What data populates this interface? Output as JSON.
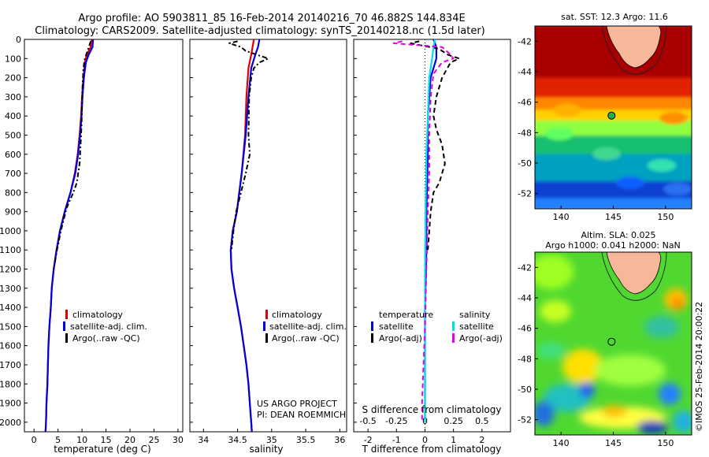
{
  "figure": {
    "title_line1": "Argo profile: AO 5903811_85 16-Feb-2014 20140216_70 46.882S 144.834E",
    "title_line2": "Climatology: CARS2009. Satellite-adjusted climatology: synTS_20140218.nc (1.5d later)",
    "project_line1": "US ARGO PROJECT",
    "project_line2": "PI: DEAN ROEMMICH",
    "watermark": "©IMOS 25-Feb-2014 20:00:22"
  },
  "colors": {
    "climatology": "#e00000",
    "satellite": "#0000e0",
    "argo": "#000000",
    "sal_satellite": "#00e0e0",
    "sal_argo": "#e000e0",
    "land": "#f6b899"
  },
  "chart_data": [
    {
      "type": "line",
      "name": "temperature-profile",
      "xlabel": "temperature (deg C)",
      "ylabel": "",
      "xlim": [
        -2,
        31
      ],
      "ylim": [
        2050,
        0
      ],
      "xticks": [
        "0",
        "5",
        "10",
        "15",
        "20",
        "25",
        "30"
      ],
      "yticks": [
        "0",
        "100",
        "200",
        "300",
        "400",
        "500",
        "600",
        "700",
        "800",
        "900",
        "1000",
        "1100",
        "1200",
        "1300",
        "1400",
        "1500",
        "1600",
        "1700",
        "1800",
        "1900",
        "2000"
      ],
      "legend": {
        "position": "lower-center",
        "entries": [
          "climatology",
          "satellite-adj. clim.",
          "Argo(..raw -QC)"
        ]
      },
      "series": [
        {
          "name": "climatology",
          "style": "solid",
          "points": [
            [
              12.0,
              0
            ],
            [
              11.8,
              40
            ],
            [
              11.0,
              80
            ],
            [
              10.6,
              120
            ],
            [
              10.3,
              200
            ],
            [
              10.0,
              300
            ],
            [
              9.8,
              400
            ],
            [
              9.5,
              500
            ],
            [
              9.1,
              600
            ],
            [
              8.5,
              700
            ],
            [
              7.6,
              800
            ],
            [
              6.4,
              900
            ],
            [
              5.4,
              1000
            ],
            [
              4.7,
              1100
            ],
            [
              4.1,
              1200
            ],
            [
              3.7,
              1300
            ],
            [
              3.5,
              1400
            ],
            [
              3.2,
              1500
            ],
            [
              3.0,
              1600
            ],
            [
              2.9,
              1700
            ],
            [
              2.8,
              1800
            ],
            [
              2.6,
              1900
            ],
            [
              2.5,
              2000
            ],
            [
              2.4,
              2050
            ]
          ]
        },
        {
          "name": "satellite-adj. clim.",
          "style": "solid",
          "points": [
            [
              12.3,
              0
            ],
            [
              12.2,
              40
            ],
            [
              11.4,
              80
            ],
            [
              10.8,
              120
            ],
            [
              10.4,
              200
            ],
            [
              10.1,
              300
            ],
            [
              9.9,
              400
            ],
            [
              9.6,
              500
            ],
            [
              9.2,
              600
            ],
            [
              8.6,
              700
            ],
            [
              7.6,
              800
            ],
            [
              6.4,
              900
            ],
            [
              5.4,
              1000
            ],
            [
              4.7,
              1100
            ],
            [
              4.1,
              1200
            ],
            [
              3.7,
              1300
            ],
            [
              3.5,
              1400
            ],
            [
              3.2,
              1500
            ],
            [
              3.0,
              1600
            ],
            [
              2.9,
              1700
            ],
            [
              2.8,
              1800
            ],
            [
              2.6,
              1900
            ],
            [
              2.5,
              2000
            ],
            [
              2.4,
              2050
            ]
          ]
        },
        {
          "name": "Argo(..raw -QC)",
          "style": "dashdot",
          "points": [
            [
              11.8,
              10
            ],
            [
              11.3,
              50
            ],
            [
              10.6,
              100
            ],
            [
              10.3,
              150
            ],
            [
              10.1,
              250
            ],
            [
              10.0,
              350
            ],
            [
              9.9,
              450
            ],
            [
              9.7,
              550
            ],
            [
              9.5,
              650
            ],
            [
              8.9,
              750
            ],
            [
              8.2,
              800
            ],
            [
              6.8,
              880
            ],
            [
              5.6,
              1000
            ],
            [
              4.8,
              1100
            ],
            [
              4.1,
              1200
            ]
          ]
        }
      ]
    },
    {
      "type": "line",
      "name": "salinity-profile",
      "xlabel": "salinity",
      "ylabel": "",
      "xlim": [
        33.8,
        36.1
      ],
      "ylim": [
        2050,
        0
      ],
      "xticks": [
        "34",
        "34.5",
        "35",
        "35.5",
        "36"
      ],
      "legend": {
        "position": "lower-center",
        "entries": [
          "climatology",
          "satellite-adj. clim.",
          "Argo(..raw -QC)"
        ]
      },
      "series": [
        {
          "name": "climatology",
          "style": "solid",
          "points": [
            [
              34.74,
              0
            ],
            [
              34.72,
              40
            ],
            [
              34.7,
              80
            ],
            [
              34.66,
              150
            ],
            [
              34.63,
              300
            ],
            [
              34.61,
              500
            ],
            [
              34.56,
              700
            ],
            [
              34.49,
              900
            ],
            [
              34.43,
              1000
            ],
            [
              34.4,
              1100
            ],
            [
              34.41,
              1200
            ],
            [
              34.45,
              1300
            ],
            [
              34.5,
              1400
            ],
            [
              34.55,
              1500
            ],
            [
              34.59,
              1600
            ],
            [
              34.63,
              1700
            ],
            [
              34.66,
              1800
            ],
            [
              34.68,
              1900
            ],
            [
              34.7,
              2000
            ],
            [
              34.71,
              2050
            ]
          ]
        },
        {
          "name": "satellite-adj. clim.",
          "style": "solid",
          "points": [
            [
              34.82,
              0
            ],
            [
              34.8,
              40
            ],
            [
              34.76,
              80
            ],
            [
              34.7,
              150
            ],
            [
              34.66,
              300
            ],
            [
              34.62,
              500
            ],
            [
              34.56,
              700
            ],
            [
              34.49,
              900
            ],
            [
              34.43,
              1000
            ],
            [
              34.4,
              1100
            ],
            [
              34.41,
              1200
            ],
            [
              34.45,
              1300
            ],
            [
              34.5,
              1400
            ],
            [
              34.55,
              1500
            ],
            [
              34.59,
              1600
            ],
            [
              34.63,
              1700
            ],
            [
              34.66,
              1800
            ],
            [
              34.68,
              1900
            ],
            [
              34.7,
              2000
            ],
            [
              34.71,
              2050
            ]
          ]
        },
        {
          "name": "Argo(..raw -QC)",
          "style": "dashdot",
          "points": [
            [
              34.5,
              10
            ],
            [
              34.38,
              20
            ],
            [
              34.55,
              40
            ],
            [
              34.62,
              60
            ],
            [
              34.78,
              80
            ],
            [
              34.95,
              100
            ],
            [
              34.82,
              120
            ],
            [
              34.74,
              150
            ],
            [
              34.7,
              200
            ],
            [
              34.67,
              300
            ],
            [
              34.66,
              500
            ],
            [
              34.68,
              600
            ],
            [
              34.62,
              700
            ],
            [
              34.55,
              800
            ],
            [
              34.48,
              900
            ],
            [
              34.44,
              1000
            ],
            [
              34.41,
              1100
            ]
          ]
        }
      ]
    },
    {
      "type": "line",
      "name": "difference-profile",
      "xlabel": "T difference from climatology",
      "top_axis_label": "S difference from climatology",
      "xlim": [
        -2.5,
        3.0
      ],
      "ylim": [
        2050,
        0
      ],
      "xticks": [
        "-2",
        "-1",
        "0",
        "1",
        "2"
      ],
      "top_ticks": [
        "-0.5",
        "-0.25",
        "0",
        "0.25",
        "0.5"
      ],
      "legend": {
        "position": "lower-center",
        "headers": [
          "temperature",
          "salinity"
        ],
        "entries": [
          "satellite",
          "Argo(-adj)",
          "satellite",
          "Argo(-adj)"
        ]
      },
      "series": [
        {
          "name": "temperature satellite",
          "style": "solid",
          "points": [
            [
              0.3,
              0
            ],
            [
              0.4,
              40
            ],
            [
              0.4,
              100
            ],
            [
              0.2,
              200
            ],
            [
              0.1,
              400
            ],
            [
              0.1,
              600
            ],
            [
              0.05,
              900
            ],
            [
              0.05,
              1100
            ],
            [
              0.0,
              1400
            ],
            [
              0.0,
              2000
            ]
          ]
        },
        {
          "name": "temperature Argo(-adj)",
          "style": "dashed",
          "points": [
            [
              -0.2,
              10
            ],
            [
              -0.5,
              20
            ],
            [
              0.5,
              50
            ],
            [
              0.8,
              80
            ],
            [
              1.2,
              100
            ],
            [
              0.9,
              120
            ],
            [
              0.6,
              200
            ],
            [
              0.4,
              300
            ],
            [
              0.3,
              400
            ],
            [
              0.4,
              470
            ],
            [
              0.6,
              550
            ],
            [
              0.7,
              650
            ],
            [
              0.5,
              750
            ],
            [
              0.3,
              800
            ],
            [
              0.2,
              900
            ],
            [
              0.1,
              1100
            ]
          ]
        },
        {
          "name": "salinity satellite",
          "style": "solid",
          "points": [
            [
              0.35,
              0
            ],
            [
              0.3,
              40
            ],
            [
              0.25,
              100
            ],
            [
              0.15,
              200
            ],
            [
              0.1,
              400
            ],
            [
              0.05,
              600
            ],
            [
              0.02,
              900
            ],
            [
              0.0,
              1200
            ],
            [
              0.0,
              2000
            ]
          ]
        },
        {
          "name": "salinity Argo(-adj)",
          "style": "dashed",
          "points": [
            [
              -0.8,
              10
            ],
            [
              -1.1,
              20
            ],
            [
              0.6,
              40
            ],
            [
              0.9,
              80
            ],
            [
              1.0,
              100
            ],
            [
              0.6,
              120
            ],
            [
              0.3,
              180
            ],
            [
              0.2,
              300
            ],
            [
              0.15,
              500
            ],
            [
              0.15,
              700
            ],
            [
              0.1,
              900
            ],
            [
              0.05,
              1200
            ],
            [
              0.0,
              1500
            ],
            [
              -0.05,
              1700
            ],
            [
              -0.1,
              1900
            ],
            [
              -0.1,
              2000
            ]
          ]
        }
      ]
    },
    {
      "type": "heatmap",
      "name": "sst-map",
      "title": "sat. SST: 12.3 Argo: 11.6",
      "xlim": [
        137.5,
        152.5
      ],
      "ylim": [
        -53,
        -41
      ],
      "xticks": [
        "140",
        "145",
        "150"
      ],
      "yticks": [
        "-42",
        "-44",
        "-46",
        "-48",
        "-50",
        "-52"
      ],
      "argo_position": [
        144.834,
        -46.882
      ],
      "bands": [
        {
          "lat": [
            -41,
            -44.5
          ],
          "color": "#a80000"
        },
        {
          "lat": [
            -44.5,
            -45.8
          ],
          "color": "#e02000"
        },
        {
          "lat": [
            -45.8,
            -46.6
          ],
          "color": "#ff8800"
        },
        {
          "lat": [
            -46.6,
            -47.3
          ],
          "color": "#ffd000"
        },
        {
          "lat": [
            -47.3,
            -48.3
          ],
          "color": "#90ff40"
        },
        {
          "lat": [
            -48.3,
            -49.5
          ],
          "color": "#18c070"
        },
        {
          "lat": [
            -49.5,
            -51.3
          ],
          "color": "#00a0c0"
        },
        {
          "lat": [
            -51.3,
            -52.4
          ],
          "color": "#1040d0"
        },
        {
          "lat": [
            -52.4,
            -53
          ],
          "color": "#2080ff"
        }
      ]
    },
    {
      "type": "heatmap",
      "name": "sla-map",
      "title_line1": "Altim. SLA: 0.025",
      "title_line2": "Argo h1000: 0.041 h2000: NaN",
      "xlim": [
        137.5,
        152.5
      ],
      "ylim": [
        -53,
        -41
      ],
      "xticks": [
        "140",
        "145",
        "150"
      ],
      "yticks": [
        "-42",
        "-44",
        "-46",
        "-48",
        "-50",
        "-52"
      ],
      "argo_position": [
        144.834,
        -46.882
      ]
    }
  ]
}
